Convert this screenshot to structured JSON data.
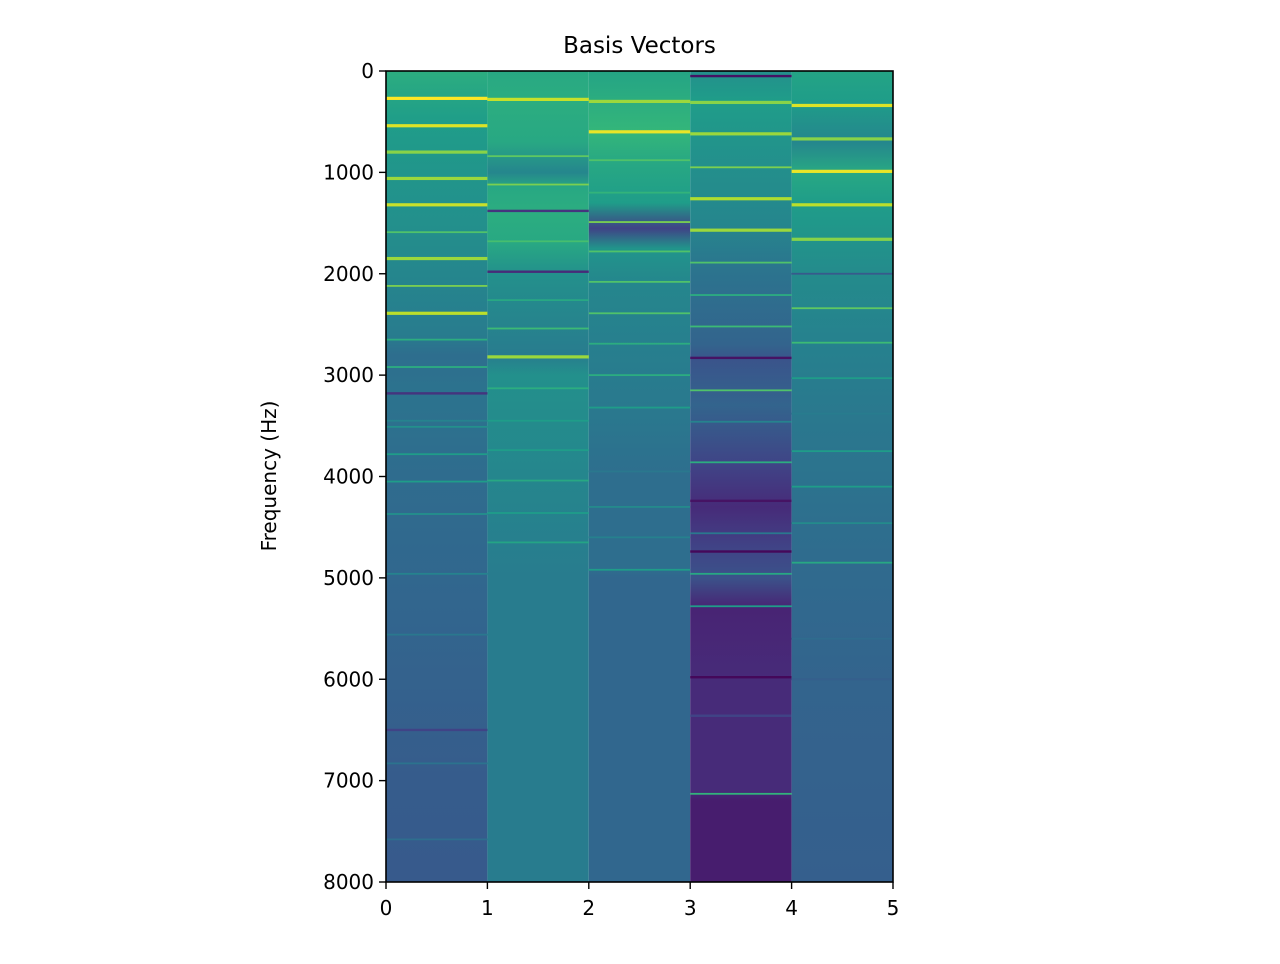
{
  "chart_data": {
    "type": "heatmap",
    "title": "Basis Vectors",
    "xlabel": "",
    "ylabel": "Frequency (Hz)",
    "xlim": [
      0,
      5
    ],
    "ylim": [
      8000,
      0
    ],
    "y_inverted": true,
    "grid": false,
    "legend": "none",
    "colormap": "viridis",
    "x_ticks": [
      "0",
      "1",
      "2",
      "3",
      "4",
      "5"
    ],
    "y_ticks": [
      "0",
      "1000",
      "2000",
      "3000",
      "4000",
      "5000",
      "6000",
      "7000",
      "8000"
    ],
    "x_tick_values": [
      0,
      1,
      2,
      3,
      4,
      5
    ],
    "y_tick_values": [
      0,
      1000,
      2000,
      3000,
      4000,
      5000,
      6000,
      7000,
      8000
    ],
    "columns": [
      {
        "index": 0,
        "background": [
          [
            0,
            0.62
          ],
          [
            500,
            0.55
          ],
          [
            1000,
            0.52
          ],
          [
            1500,
            0.5
          ],
          [
            2000,
            0.46
          ],
          [
            2600,
            0.42
          ],
          [
            2800,
            0.36
          ],
          [
            3200,
            0.38
          ],
          [
            4000,
            0.35
          ],
          [
            5000,
            0.33
          ],
          [
            6000,
            0.31
          ],
          [
            7000,
            0.29
          ],
          [
            8000,
            0.28
          ]
        ],
        "lines": [
          [
            270,
            1.0
          ],
          [
            540,
            0.95
          ],
          [
            800,
            0.82
          ],
          [
            1060,
            0.85
          ],
          [
            1320,
            0.92
          ],
          [
            1590,
            0.72
          ],
          [
            1850,
            0.85
          ],
          [
            2120,
            0.8
          ],
          [
            2390,
            0.9
          ],
          [
            2650,
            0.62
          ],
          [
            2920,
            0.62
          ],
          [
            3180,
            0.15
          ],
          [
            3450,
            0.45
          ],
          [
            3510,
            0.5
          ],
          [
            3780,
            0.55
          ],
          [
            4050,
            0.55
          ],
          [
            4370,
            0.5
          ],
          [
            4960,
            0.45
          ],
          [
            5560,
            0.4
          ],
          [
            6500,
            0.2
          ],
          [
            6830,
            0.38
          ],
          [
            7580,
            0.36
          ]
        ]
      },
      {
        "index": 1,
        "background": [
          [
            0,
            0.6
          ],
          [
            300,
            0.62
          ],
          [
            700,
            0.6
          ],
          [
            1000,
            0.46
          ],
          [
            1150,
            0.6
          ],
          [
            1400,
            0.62
          ],
          [
            1700,
            0.6
          ],
          [
            2000,
            0.5
          ],
          [
            2800,
            0.42
          ],
          [
            3000,
            0.5
          ],
          [
            4000,
            0.46
          ],
          [
            5000,
            0.42
          ],
          [
            8000,
            0.42
          ]
        ],
        "lines": [
          [
            280,
            0.92
          ],
          [
            840,
            0.75
          ],
          [
            1120,
            0.8
          ],
          [
            1380,
            0.15
          ],
          [
            1680,
            0.7
          ],
          [
            1980,
            0.12
          ],
          [
            2260,
            0.6
          ],
          [
            2540,
            0.68
          ],
          [
            2820,
            0.85
          ],
          [
            3130,
            0.62
          ],
          [
            3450,
            0.55
          ],
          [
            3740,
            0.55
          ],
          [
            4040,
            0.6
          ],
          [
            4360,
            0.55
          ],
          [
            4650,
            0.58
          ]
        ]
      },
      {
        "index": 2,
        "background": [
          [
            0,
            0.58
          ],
          [
            600,
            0.66
          ],
          [
            900,
            0.6
          ],
          [
            1300,
            0.55
          ],
          [
            1550,
            0.2
          ],
          [
            1750,
            0.52
          ],
          [
            2100,
            0.46
          ],
          [
            3000,
            0.42
          ],
          [
            3400,
            0.4
          ],
          [
            4000,
            0.36
          ],
          [
            4900,
            0.36
          ],
          [
            5000,
            0.33
          ],
          [
            8000,
            0.33
          ]
        ],
        "lines": [
          [
            300,
            0.85
          ],
          [
            600,
            0.97
          ],
          [
            880,
            0.72
          ],
          [
            1200,
            0.65
          ],
          [
            1490,
            0.8
          ],
          [
            1780,
            0.72
          ],
          [
            2080,
            0.72
          ],
          [
            2390,
            0.72
          ],
          [
            2690,
            0.62
          ],
          [
            3000,
            0.62
          ],
          [
            3320,
            0.55
          ],
          [
            3950,
            0.4
          ],
          [
            4300,
            0.48
          ],
          [
            4600,
            0.44
          ],
          [
            4920,
            0.55
          ]
        ]
      },
      {
        "index": 3,
        "background": [
          [
            0,
            0.5
          ],
          [
            300,
            0.55
          ],
          [
            900,
            0.5
          ],
          [
            1500,
            0.46
          ],
          [
            2000,
            0.38
          ],
          [
            2700,
            0.32
          ],
          [
            2850,
            0.26
          ],
          [
            3300,
            0.32
          ],
          [
            3900,
            0.2
          ],
          [
            4300,
            0.12
          ],
          [
            4700,
            0.2
          ],
          [
            5000,
            0.25
          ],
          [
            5300,
            0.1
          ],
          [
            6000,
            0.12
          ],
          [
            7100,
            0.12
          ],
          [
            7200,
            0.08
          ],
          [
            8000,
            0.08
          ]
        ],
        "lines": [
          [
            50,
            0.05
          ],
          [
            310,
            0.82
          ],
          [
            620,
            0.85
          ],
          [
            950,
            0.8
          ],
          [
            1260,
            0.88
          ],
          [
            1570,
            0.85
          ],
          [
            1890,
            0.72
          ],
          [
            2210,
            0.62
          ],
          [
            2520,
            0.68
          ],
          [
            2830,
            0.05
          ],
          [
            3150,
            0.72
          ],
          [
            3460,
            0.45
          ],
          [
            3860,
            0.62
          ],
          [
            4240,
            0.05
          ],
          [
            4560,
            0.4
          ],
          [
            4740,
            0.02
          ],
          [
            4960,
            0.6
          ],
          [
            5280,
            0.55
          ],
          [
            5980,
            0.02
          ],
          [
            6360,
            0.2
          ],
          [
            7130,
            0.65
          ]
        ]
      },
      {
        "index": 4,
        "background": [
          [
            0,
            0.58
          ],
          [
            300,
            0.55
          ],
          [
            700,
            0.46
          ],
          [
            1000,
            0.6
          ],
          [
            1300,
            0.55
          ],
          [
            2000,
            0.48
          ],
          [
            2700,
            0.44
          ],
          [
            3400,
            0.4
          ],
          [
            4000,
            0.38
          ],
          [
            5000,
            0.34
          ],
          [
            6000,
            0.32
          ],
          [
            8000,
            0.3
          ]
        ],
        "lines": [
          [
            340,
            0.95
          ],
          [
            670,
            0.82
          ],
          [
            990,
            0.97
          ],
          [
            1320,
            0.9
          ],
          [
            1660,
            0.82
          ],
          [
            2000,
            0.28
          ],
          [
            2340,
            0.75
          ],
          [
            2680,
            0.68
          ],
          [
            3030,
            0.55
          ],
          [
            3380,
            0.42
          ],
          [
            3750,
            0.55
          ],
          [
            4100,
            0.55
          ],
          [
            4460,
            0.48
          ],
          [
            4850,
            0.6
          ],
          [
            5600,
            0.35
          ],
          [
            6000,
            0.3
          ]
        ]
      }
    ]
  }
}
